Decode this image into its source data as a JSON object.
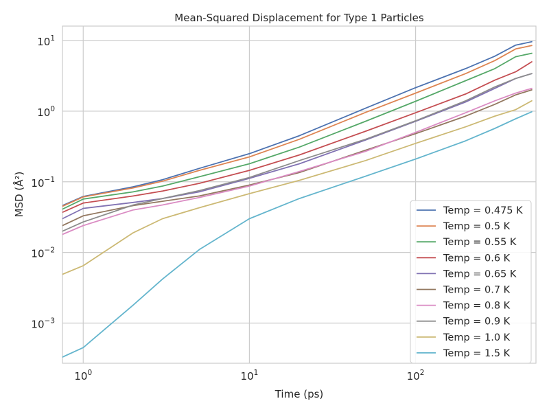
{
  "chart_data": {
    "type": "line",
    "title": "Mean-Squared Displacement for Type 1 Particles",
    "xlabel": "Time (ps)",
    "ylabel": "MSD (Å²)",
    "xscale": "log",
    "yscale": "log",
    "xlim": [
      0.75,
      530
    ],
    "ylim": [
      0.00027,
      16
    ],
    "xticks": [
      {
        "value": 1,
        "base": "10",
        "exp": "0"
      },
      {
        "value": 10,
        "base": "10",
        "exp": "1"
      },
      {
        "value": 100,
        "base": "10",
        "exp": "2"
      }
    ],
    "yticks": [
      {
        "value": 0.001,
        "base": "10",
        "exp": "−3"
      },
      {
        "value": 0.01,
        "base": "10",
        "exp": "−2"
      },
      {
        "value": 0.1,
        "base": "10",
        "exp": "−1"
      },
      {
        "value": 1,
        "base": "10",
        "exp": "0"
      },
      {
        "value": 10,
        "base": "10",
        "exp": "1"
      }
    ],
    "grid": true,
    "legend_position": "lower-right",
    "x": [
      0.75,
      1,
      2,
      3,
      5,
      10,
      20,
      50,
      100,
      200,
      300,
      400,
      500
    ],
    "series": [
      {
        "name": "Temp = 0.475 K",
        "color": "#4c72b0",
        "values": [
          0.046,
          0.062,
          0.085,
          0.107,
          0.155,
          0.25,
          0.45,
          1.1,
          2.15,
          4.0,
          6.0,
          8.6,
          9.6
        ]
      },
      {
        "name": "Temp = 0.5 K",
        "color": "#dd8452",
        "values": [
          0.045,
          0.061,
          0.082,
          0.102,
          0.145,
          0.225,
          0.4,
          0.96,
          1.8,
          3.4,
          5.2,
          7.6,
          8.5
        ]
      },
      {
        "name": "Temp = 0.55 K",
        "color": "#55a868",
        "values": [
          0.041,
          0.057,
          0.072,
          0.087,
          0.118,
          0.18,
          0.31,
          0.72,
          1.38,
          2.7,
          4.0,
          5.9,
          6.6
        ]
      },
      {
        "name": "Temp = 0.6 K",
        "color": "#c44e52",
        "values": [
          0.037,
          0.05,
          0.063,
          0.074,
          0.095,
          0.145,
          0.24,
          0.52,
          0.95,
          1.75,
          2.75,
          3.6,
          5.0
        ]
      },
      {
        "name": "Temp = 0.65 K",
        "color": "#8172b3",
        "values": [
          0.03,
          0.042,
          0.051,
          0.058,
          0.072,
          0.112,
          0.18,
          0.39,
          0.72,
          1.35,
          2.1,
          2.9,
          3.4
        ]
      },
      {
        "name": "Temp = 0.7 K",
        "color": "#937860",
        "values": [
          0.024,
          0.033,
          0.046,
          0.053,
          0.063,
          0.09,
          0.135,
          0.28,
          0.48,
          0.85,
          1.25,
          1.7,
          2.0
        ]
      },
      {
        "name": "Temp = 0.8 K",
        "color": "#da8bc3",
        "values": [
          0.018,
          0.024,
          0.04,
          0.047,
          0.06,
          0.087,
          0.14,
          0.27,
          0.5,
          0.95,
          1.4,
          1.8,
          2.1
        ]
      },
      {
        "name": "Temp = 0.9 K",
        "color": "#8c8c8c",
        "values": [
          0.02,
          0.027,
          0.047,
          0.058,
          0.075,
          0.115,
          0.2,
          0.4,
          0.73,
          1.4,
          2.2,
          2.9,
          3.4
        ]
      },
      {
        "name": "Temp = 1.0 K",
        "color": "#ccb974",
        "values": [
          0.0049,
          0.0065,
          0.019,
          0.03,
          0.043,
          0.068,
          0.105,
          0.2,
          0.35,
          0.6,
          0.85,
          1.05,
          1.4
        ]
      },
      {
        "name": "Temp = 1.5 K",
        "color": "#64b5cd",
        "values": [
          0.00033,
          0.00045,
          0.0018,
          0.0042,
          0.011,
          0.03,
          0.058,
          0.12,
          0.21,
          0.38,
          0.57,
          0.78,
          0.98
        ]
      }
    ]
  }
}
